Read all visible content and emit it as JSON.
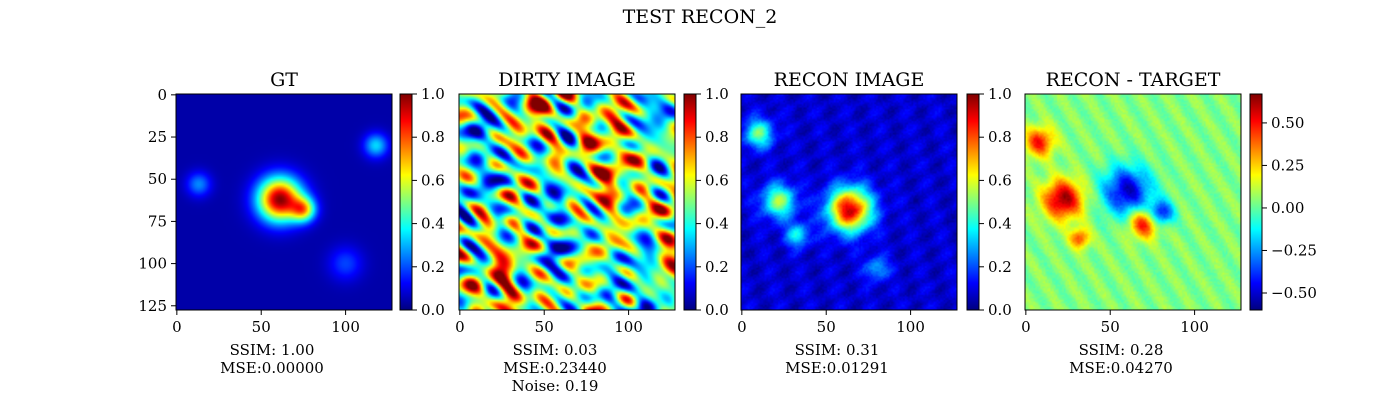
{
  "figure": {
    "title": "TEST RECON_2"
  },
  "colormap": "jet",
  "chart_data": [
    {
      "type": "heatmap",
      "title": "GT",
      "x_ticks": [
        0,
        50,
        100
      ],
      "y_ticks": [
        0,
        25,
        50,
        75,
        100,
        125
      ],
      "xlim": [
        0,
        127
      ],
      "ylim": [
        127,
        0
      ],
      "colorbar": {
        "range": [
          0,
          1
        ],
        "ticks": [
          0.0,
          0.2,
          0.4,
          0.6,
          0.8,
          1.0
        ],
        "tick_labels": [
          "0.0",
          "0.2",
          "0.4",
          "0.6",
          "0.8",
          "1.0"
        ]
      },
      "metrics": [
        "SSIM: 1.00",
        "MSE:0.00000"
      ],
      "features": [
        {
          "x": 61,
          "y": 62,
          "value": 0.95,
          "radius": 9
        },
        {
          "x": 75,
          "y": 68,
          "value": 0.55,
          "radius": 5
        },
        {
          "x": 13,
          "y": 53,
          "value": 0.22,
          "radius": 5
        },
        {
          "x": 118,
          "y": 30,
          "value": 0.3,
          "radius": 5
        },
        {
          "x": 100,
          "y": 100,
          "value": 0.15,
          "radius": 7
        }
      ]
    },
    {
      "type": "heatmap",
      "title": "DIRTY IMAGE",
      "x_ticks": [
        0,
        50,
        100
      ],
      "xlim": [
        0,
        127
      ],
      "ylim": [
        127,
        0
      ],
      "colorbar": {
        "range": [
          0,
          1
        ],
        "ticks": [
          0.0,
          0.2,
          0.4,
          0.6,
          0.8,
          1.0
        ],
        "tick_labels": [
          "0.0",
          "0.2",
          "0.4",
          "0.6",
          "0.8",
          "1.0"
        ]
      },
      "metrics": [
        "SSIM: 0.03",
        "MSE:0.23440",
        "Noise: 0.19"
      ]
    },
    {
      "type": "heatmap",
      "title": "RECON IMAGE",
      "x_ticks": [
        0,
        50,
        100
      ],
      "xlim": [
        0,
        127
      ],
      "ylim": [
        127,
        0
      ],
      "colorbar": {
        "range": [
          0,
          1
        ],
        "ticks": [
          0.0,
          0.2,
          0.4,
          0.6,
          0.8,
          1.0
        ],
        "tick_labels": [
          "0.0",
          "0.2",
          "0.4",
          "0.6",
          "0.8",
          "1.0"
        ]
      },
      "metrics": [
        "SSIM: 0.31",
        "MSE:0.01291"
      ],
      "features": [
        {
          "x": 64,
          "y": 68,
          "value": 0.85,
          "radius": 9
        },
        {
          "x": 22,
          "y": 63,
          "value": 0.45,
          "radius": 7
        },
        {
          "x": 10,
          "y": 23,
          "value": 0.4,
          "radius": 6
        },
        {
          "x": 33,
          "y": 83,
          "value": 0.3,
          "radius": 5
        },
        {
          "x": 80,
          "y": 103,
          "value": 0.22,
          "radius": 5
        }
      ]
    },
    {
      "type": "heatmap",
      "title": "RECON - TARGET",
      "x_ticks": [
        0,
        50,
        100
      ],
      "xlim": [
        0,
        127
      ],
      "ylim": [
        127,
        0
      ],
      "colorbar": {
        "range": [
          -0.6,
          0.67
        ],
        "ticks": [
          0.5,
          0.25,
          0.0,
          -0.25,
          -0.5
        ],
        "tick_labels": [
          "0.50",
          "0.25",
          "0.00",
          "−0.25",
          "−0.50"
        ]
      },
      "metrics": [
        "SSIM: 0.28",
        "MSE:0.04270"
      ],
      "features": [
        {
          "x": 22,
          "y": 62,
          "value": 0.6,
          "radius": 8
        },
        {
          "x": 8,
          "y": 28,
          "value": 0.45,
          "radius": 6
        },
        {
          "x": 32,
          "y": 85,
          "value": 0.4,
          "radius": 4
        },
        {
          "x": 70,
          "y": 76,
          "value": 0.5,
          "radius": 6
        },
        {
          "x": 60,
          "y": 57,
          "value": -0.55,
          "radius": 10
        },
        {
          "x": 80,
          "y": 70,
          "value": -0.5,
          "radius": 5
        }
      ]
    }
  ]
}
